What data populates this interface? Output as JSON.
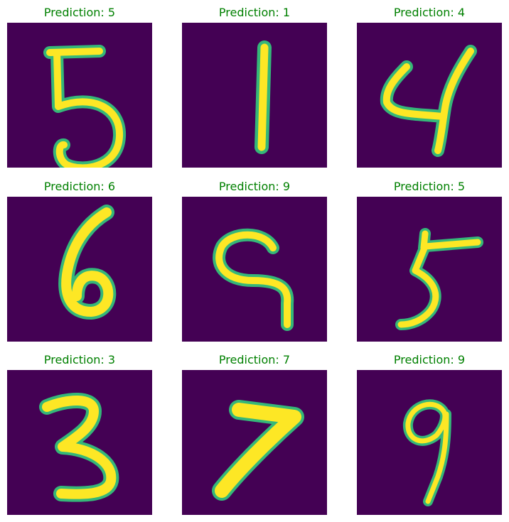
{
  "palette": {
    "background": "#440154",
    "stroke": "#fde725",
    "edge": "#35b779",
    "title": "#008000"
  },
  "panels": [
    {
      "title": "Prediction: 5",
      "digit": "5"
    },
    {
      "title": "Prediction: 1",
      "digit": "1"
    },
    {
      "title": "Prediction: 4",
      "digit": "4"
    },
    {
      "title": "Prediction: 6",
      "digit": "6"
    },
    {
      "title": "Prediction: 9",
      "digit": "9"
    },
    {
      "title": "Prediction: 5",
      "digit": "5"
    },
    {
      "title": "Prediction: 3",
      "digit": "3"
    },
    {
      "title": "Prediction: 7",
      "digit": "7"
    },
    {
      "title": "Prediction: 9",
      "digit": "9"
    }
  ]
}
